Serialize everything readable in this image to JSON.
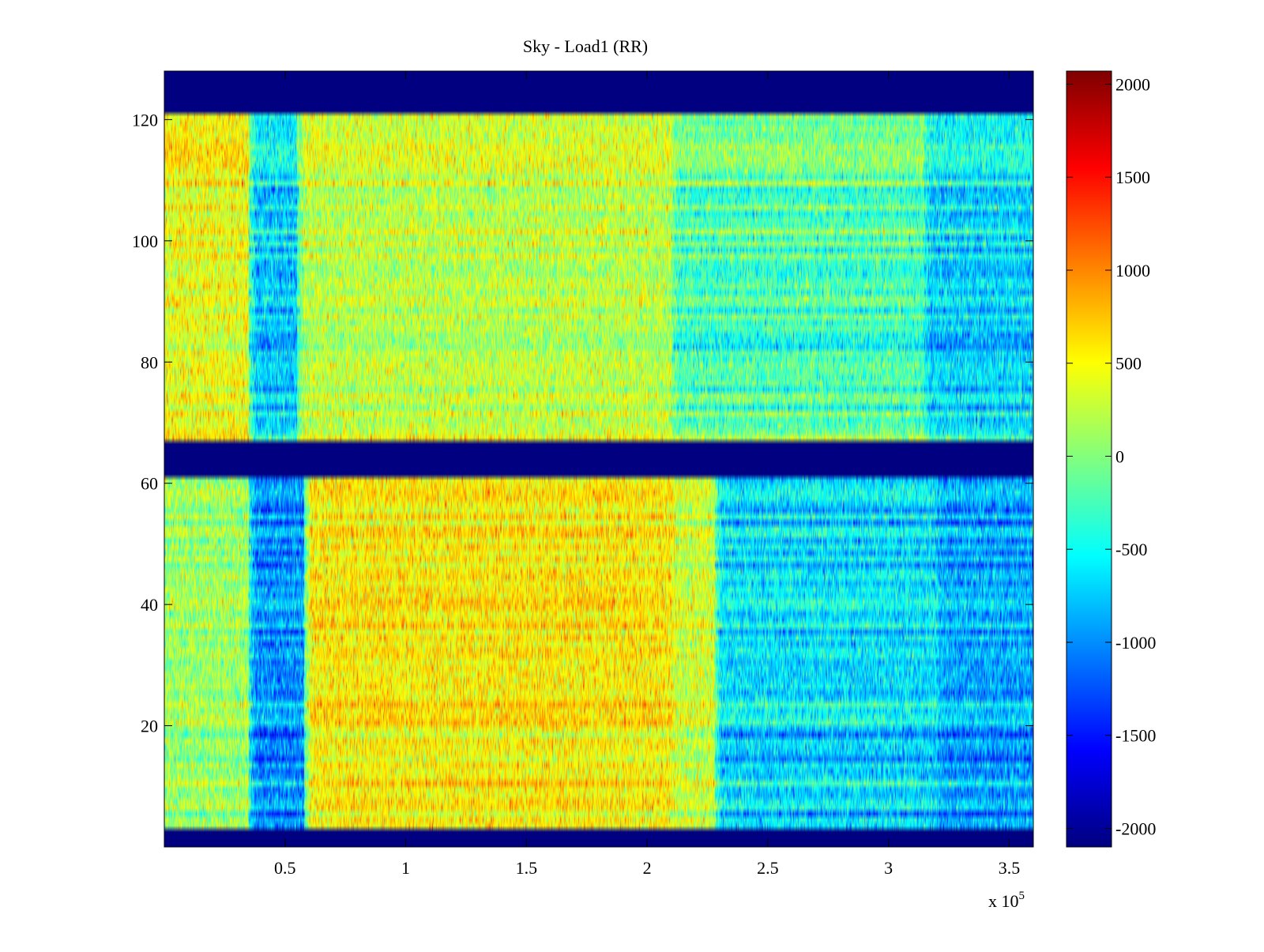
{
  "chart_data": {
    "type": "heatmap",
    "title": "Sky - Load1 (RR)",
    "xlabel": "",
    "ylabel": "",
    "x_multiplier_label": "x 10",
    "x_multiplier_exponent": "5",
    "xlim": [
      0,
      3.6
    ],
    "ylim": [
      0,
      128
    ],
    "x_ticks": [
      0.5,
      1,
      1.5,
      2,
      2.5,
      3,
      3.5
    ],
    "x_tick_labels": [
      "0.5",
      "1",
      "1.5",
      "2",
      "2.5",
      "3",
      "3.5"
    ],
    "y_ticks": [
      20,
      40,
      60,
      80,
      100,
      120
    ],
    "y_tick_labels": [
      "20",
      "40",
      "60",
      "80",
      "100",
      "120"
    ],
    "colormap": "jet",
    "clim": [
      -2100,
      2070
    ],
    "colorbar_ticks": [
      2000,
      1500,
      1000,
      500,
      0,
      -500,
      -1000,
      -1500,
      -2000
    ],
    "colorbar_tick_labels": [
      "2000",
      "1500",
      "1000",
      "500",
      "0",
      "-500",
      "-1000",
      "-1500",
      "-2000"
    ],
    "masked_channel_ranges": [
      [
        0,
        3
      ],
      [
        61.5,
        67.5
      ],
      [
        121.5,
        128
      ]
    ],
    "masked_value": -2100,
    "lower_band": {
      "channels": [
        3,
        61.5
      ],
      "time_segments": [
        {
          "x": [
            0,
            0.35
          ],
          "mean": 100
        },
        {
          "x": [
            0.35,
            0.58
          ],
          "mean": -1000
        },
        {
          "x": [
            0.58,
            2.1
          ],
          "mean": 550
        },
        {
          "x": [
            2.1,
            2.28
          ],
          "mean": 300
        },
        {
          "x": [
            2.28,
            3.2
          ],
          "mean": -650
        },
        {
          "x": [
            3.2,
            3.6
          ],
          "mean": -900
        }
      ]
    },
    "upper_band": {
      "channels": [
        67.5,
        121.5
      ],
      "time_segments": [
        {
          "x": [
            0,
            0.35
          ],
          "mean": 450
        },
        {
          "x": [
            0.35,
            0.55
          ],
          "mean": -700
        },
        {
          "x": [
            0.55,
            2.1
          ],
          "mean": 250
        },
        {
          "x": [
            2.1,
            3.15
          ],
          "mean": -200
        },
        {
          "x": [
            3.15,
            3.6
          ],
          "mean": -650
        }
      ]
    }
  }
}
